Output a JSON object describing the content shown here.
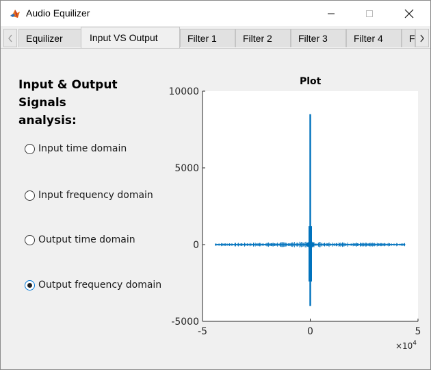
{
  "window": {
    "title": "Audio Equilizer"
  },
  "tabs": [
    {
      "label": "Equilizer",
      "selected": false
    },
    {
      "label": "Input VS Output",
      "selected": true
    },
    {
      "label": "Filter 1",
      "selected": false
    },
    {
      "label": "Filter 2",
      "selected": false
    },
    {
      "label": "Filter 3",
      "selected": false
    },
    {
      "label": "Filter 4",
      "selected": false
    },
    {
      "label": "F",
      "selected": false
    }
  ],
  "panel": {
    "heading_line1": "Input & Output Signals",
    "heading_line2": "analysis:",
    "options": [
      {
        "label": "Input time domain",
        "checked": false
      },
      {
        "label": "Input frequency domain",
        "checked": false
      },
      {
        "label": "Output time domain",
        "checked": false
      },
      {
        "label": "Output frequency domain",
        "checked": true
      }
    ]
  },
  "chart_data": {
    "type": "line",
    "title": "Plot",
    "xlabel": "",
    "ylabel": "",
    "xlim": [
      -50000,
      50000
    ],
    "ylim": [
      -5000,
      10000
    ],
    "x_ticks": [
      -50000,
      0,
      50000
    ],
    "x_tick_labels": [
      "-5",
      "0",
      "5"
    ],
    "x_exponent_label": "×10",
    "x_exponent_power": "4",
    "y_ticks": [
      -5000,
      0,
      5000,
      10000
    ],
    "y_tick_labels": [
      "-5000",
      "0",
      "5000",
      "10000"
    ],
    "grid": false,
    "color": "#0072bd",
    "series": [
      {
        "x_range": [
          -44100,
          44100
        ],
        "peak_max": 8500,
        "peak_min": -4000,
        "center_band": [
          -2400,
          1200
        ],
        "noise_amplitude": 150
      }
    ]
  }
}
